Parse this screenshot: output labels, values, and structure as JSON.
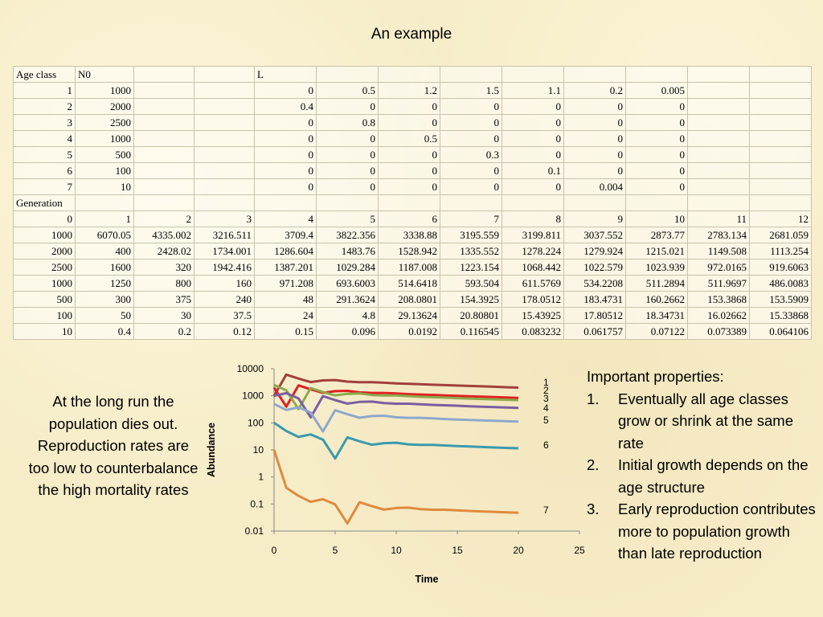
{
  "title": "An example",
  "table": {
    "header_row": [
      "Age class",
      "N0",
      "",
      "",
      "L",
      "",
      "",
      "",
      "",
      "",
      "",
      "",
      ""
    ],
    "age_rows": [
      [
        "1",
        "1000",
        "",
        "",
        "0",
        "0.5",
        "1.2",
        "1.5",
        "1.1",
        "0.2",
        "0.005",
        "",
        ""
      ],
      [
        "2",
        "2000",
        "",
        "",
        "0.4",
        "0",
        "0",
        "0",
        "0",
        "0",
        "0",
        "",
        ""
      ],
      [
        "3",
        "2500",
        "",
        "",
        "0",
        "0.8",
        "0",
        "0",
        "0",
        "0",
        "0",
        "",
        ""
      ],
      [
        "4",
        "1000",
        "",
        "",
        "0",
        "0",
        "0.5",
        "0",
        "0",
        "0",
        "0",
        "",
        ""
      ],
      [
        "5",
        "500",
        "",
        "",
        "0",
        "0",
        "0",
        "0.3",
        "0",
        "0",
        "0",
        "",
        ""
      ],
      [
        "6",
        "100",
        "",
        "",
        "0",
        "0",
        "0",
        "0",
        "0.1",
        "0",
        "0",
        "",
        ""
      ],
      [
        "7",
        "10",
        "",
        "",
        "0",
        "0",
        "0",
        "0",
        "0",
        "0.004",
        "0",
        "",
        ""
      ]
    ],
    "generation_label": "Generation",
    "generation_numbers": [
      "0",
      "1",
      "2",
      "3",
      "4",
      "5",
      "6",
      "7",
      "8",
      "9",
      "10",
      "11",
      "12"
    ],
    "generation_rows": [
      [
        "1000",
        "6070.05",
        "4335.002",
        "3216.511",
        "3709.4",
        "3822.356",
        "3338.88",
        "3195.559",
        "3199.811",
        "3037.552",
        "2873.77",
        "2783.134",
        "2681.059"
      ],
      [
        "2000",
        "400",
        "2428.02",
        "1734.001",
        "1286.604",
        "1483.76",
        "1528.942",
        "1335.552",
        "1278.224",
        "1279.924",
        "1215.021",
        "1149.508",
        "1113.254"
      ],
      [
        "2500",
        "1600",
        "320",
        "1942.416",
        "1387.201",
        "1029.284",
        "1187.008",
        "1223.154",
        "1068.442",
        "1022.579",
        "1023.939",
        "972.0165",
        "919.6063"
      ],
      [
        "1000",
        "1250",
        "800",
        "160",
        "971.208",
        "693.6003",
        "514.6418",
        "593.504",
        "611.5769",
        "534.2208",
        "511.2894",
        "511.9697",
        "486.0083"
      ],
      [
        "500",
        "300",
        "375",
        "240",
        "48",
        "291.3624",
        "208.0801",
        "154.3925",
        "178.0512",
        "183.4731",
        "160.2662",
        "153.3868",
        "153.5909"
      ],
      [
        "100",
        "50",
        "30",
        "37.5",
        "24",
        "4.8",
        "29.13624",
        "20.80801",
        "15.43925",
        "17.80512",
        "18.34731",
        "16.02662",
        "15.33868"
      ],
      [
        "10",
        "0.4",
        "0.2",
        "0.12",
        "0.15",
        "0.096",
        "0.0192",
        "0.116545",
        "0.083232",
        "0.061757",
        "0.07122",
        "0.073389",
        "0.064106"
      ]
    ]
  },
  "left_text": "At  the long run the population dies out. Reproduction rates are too low to counterbalance the high mortality rates",
  "right_text": {
    "heading": "Important properties:",
    "items": [
      {
        "num": "1.",
        "text": "Eventually all age classes grow or shrink at the same rate"
      },
      {
        "num": "2.",
        "text": "Initial growth depends on the age structure"
      },
      {
        "num": "3.",
        "text": "Early reproduction contributes more to population growth than late reproduction"
      }
    ]
  },
  "chart_data": {
    "type": "line",
    "title": "",
    "xlabel": "Time",
    "ylabel": "Abundance",
    "xlim": [
      0,
      25
    ],
    "ylim": [
      0.01,
      10000
    ],
    "yscale": "log",
    "xticks": [
      "0",
      "5",
      "10",
      "15",
      "20",
      "25"
    ],
    "yticks": [
      "0.01",
      "0.1",
      "1",
      "10",
      "100",
      "1000",
      "10000"
    ],
    "x": [
      0,
      1,
      2,
      3,
      4,
      5,
      6,
      7,
      8,
      9,
      10,
      11,
      12,
      13,
      14,
      15,
      16,
      17,
      18,
      19,
      20
    ],
    "series": [
      {
        "name": "1",
        "color": "#a0403c",
        "values": [
          1000,
          6070.05,
          4335.002,
          3216.511,
          3709.4,
          3822.356,
          3338.88,
          3195.559,
          3199.811,
          3037.552,
          2873.77,
          2783.134,
          2681.059,
          2561.19,
          2475,
          2390,
          2310,
          2230,
          2155,
          2080,
          2010
        ]
      },
      {
        "name": "2",
        "color": "#e02020",
        "values": [
          2000,
          400,
          2428.02,
          1734.001,
          1286.604,
          1483.76,
          1528.942,
          1335.552,
          1278.224,
          1279.924,
          1215.021,
          1149.508,
          1113.254,
          1072.42,
          1024,
          990,
          956,
          924,
          892,
          862,
          832
        ]
      },
      {
        "name": "3",
        "color": "#8ca84c",
        "values": [
          2500,
          1600,
          320,
          1942.416,
          1387.201,
          1029.284,
          1187.008,
          1223.154,
          1068.442,
          1022.579,
          1023.939,
          972.0165,
          919.6063,
          890.6,
          858,
          819,
          792,
          765,
          739,
          714,
          690
        ]
      },
      {
        "name": "4",
        "color": "#7a5ea0",
        "values": [
          1000,
          1250,
          800,
          160,
          971.208,
          693.6003,
          514.6418,
          593.504,
          611.5769,
          534.2208,
          511.2894,
          511.9697,
          486.0083,
          459.8,
          445,
          429,
          410,
          396,
          383,
          370,
          357
        ]
      },
      {
        "name": "5",
        "color": "#8ea8cc",
        "values": [
          500,
          300,
          375,
          240,
          48,
          291.3624,
          208.0801,
          154.3925,
          178.0512,
          183.4731,
          160.2662,
          153.3868,
          153.5909,
          145.8,
          138,
          133,
          128,
          123,
          119,
          115,
          111
        ]
      },
      {
        "name": "6",
        "color": "#3a9aae",
        "values": [
          100,
          50,
          30,
          37.5,
          24,
          4.8,
          29.13624,
          20.80801,
          15.43925,
          17.80512,
          18.34731,
          16.02662,
          15.33868,
          15.36,
          14.58,
          13.8,
          13.3,
          12.8,
          12.3,
          11.9,
          11.5
        ]
      },
      {
        "name": "7",
        "color": "#e08a3c",
        "values": [
          10,
          0.4,
          0.2,
          0.12,
          0.15,
          0.096,
          0.0192,
          0.116545,
          0.083232,
          0.061757,
          0.07122,
          0.073389,
          0.064106,
          0.0614,
          0.0614,
          0.0583,
          0.0553,
          0.0532,
          0.0512,
          0.0493,
          0.0476
        ]
      }
    ],
    "legend": "right-inline",
    "grid": false
  }
}
